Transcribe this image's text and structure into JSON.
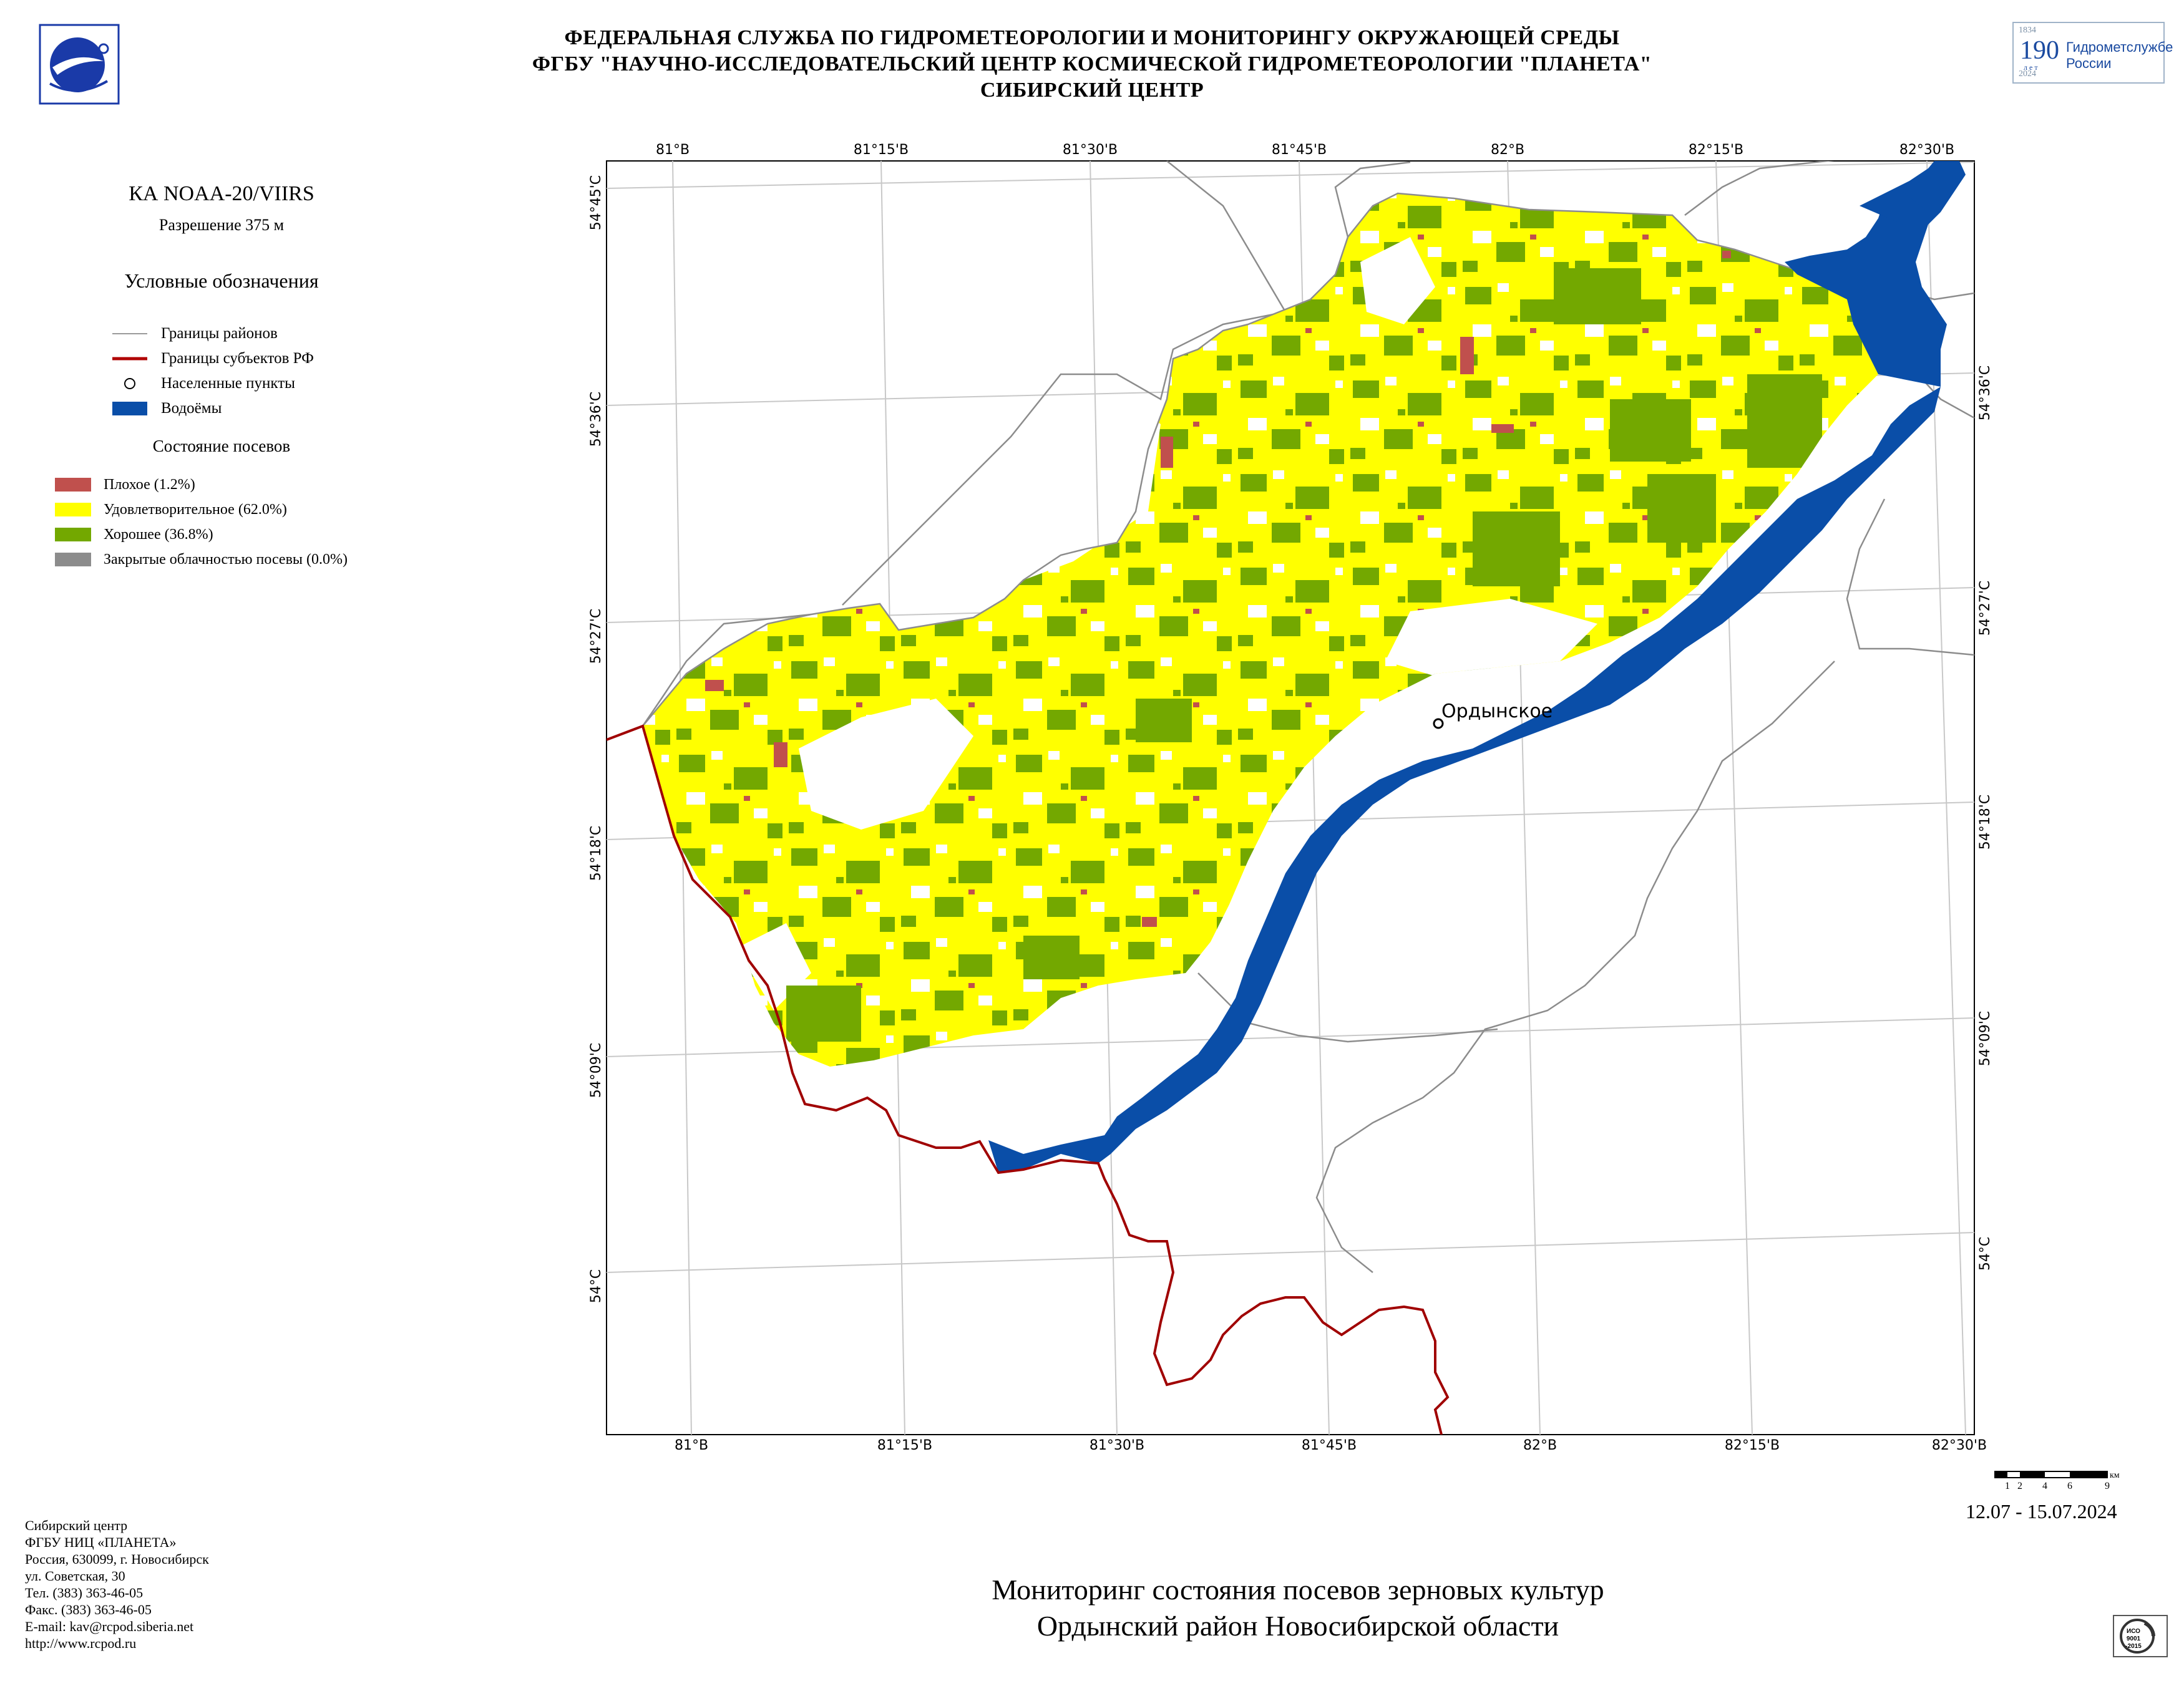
{
  "header": {
    "line1": "ФЕДЕРАЛЬНАЯ СЛУЖБА ПО ГИДРОМЕТЕОРОЛОГИИ И МОНИТОРИНГУ ОКРУЖАЮЩЕЙ СРЕДЫ",
    "line2": "ФГБУ \"НАУЧНО-ИССЛЕДОВАТЕЛЬСКИЙ ЦЕНТР КОСМИЧЕСКОЙ ГИДРОМЕТЕОРОЛОГИИ \"ПЛАНЕТА\"",
    "line3": "СИБИРСКИЙ ЦЕНТР"
  },
  "anniversary_badge": {
    "year_from": "1834",
    "number": "190",
    "unit": "л е т",
    "year_to": "2024",
    "text1": "Гидрометслужбе",
    "text2": "России"
  },
  "sidebar": {
    "satellite": "КА NOAA-20/VIIRS",
    "resolution": "Разрешение 375 м",
    "legend_title": "Условные обозначения",
    "legend": [
      {
        "label": "Границы районов",
        "color": "#9a9a9a",
        "icon": "thin-line"
      },
      {
        "label": "Границы субъектов РФ",
        "color": "#b00000",
        "icon": "thick-line"
      },
      {
        "label": "Населенные пункты",
        "color": "#000000",
        "icon": "circle"
      },
      {
        "label": "Водоёмы",
        "color": "#0a4ea8",
        "icon": "fill-box"
      }
    ],
    "crop_title": "Состояние посевов",
    "crop_classes": [
      {
        "label": "Плохое (1.2%)",
        "color": "#c0504d",
        "percent": 1.2
      },
      {
        "label": "Удовлетворительное (62.0%)",
        "color": "#ffff00",
        "percent": 62.0
      },
      {
        "label": "Хорошее (36.8%)",
        "color": "#73a800",
        "percent": 36.8
      },
      {
        "label": "Закрытые облачностью посевы (0.0%)",
        "color": "#8c8c8c",
        "percent": 0.0
      }
    ]
  },
  "map": {
    "top_lon_labels": [
      "81°В",
      "81°15'В",
      "81°30'В",
      "81°45'В",
      "82°В",
      "82°15'В",
      "82°30'В"
    ],
    "bottom_lon_labels": [
      "81°В",
      "81°15'В",
      "81°30'В",
      "81°45'В",
      "82°В",
      "82°15'В",
      "82°30'В"
    ],
    "left_lat_labels": [
      "54°45'С",
      "54°36'С",
      "54°27'С",
      "54°18'С",
      "54°09'С",
      "54°С"
    ],
    "right_lat_labels": [
      "54°36'С",
      "54°27'С",
      "54°18'С",
      "54°09'С",
      "54°С"
    ],
    "settlement": "Ордынское",
    "colors": {
      "water": "#0a4ea8",
      "grid": "#c8c8c8",
      "district": "#8c8c8c",
      "region": "#a00000"
    }
  },
  "scale": {
    "labels": [
      "1",
      "2",
      "4",
      "6",
      "9"
    ],
    "unit": "км"
  },
  "date_range": "12.07 - 15.07.2024",
  "footer": {
    "address": [
      "Сибирский центр",
      "ФГБУ НИЦ «ПЛАНЕТА»",
      "Россия, 630099, г. Новосибирск",
      "ул. Советская, 30",
      "Тел. (383) 363-46-05",
      "Факс. (383) 363-46-05",
      "E-mail: kav@rcpod.siberia.net",
      "http://www.rcpod.ru"
    ],
    "title_line1": "Мониторинг состояния посевов зерновых культур",
    "title_line2": "Ордынский район Новосибирской области"
  },
  "iso_badge": {
    "line1": "ИСО",
    "line2": "9001",
    "line3": "-2015"
  }
}
